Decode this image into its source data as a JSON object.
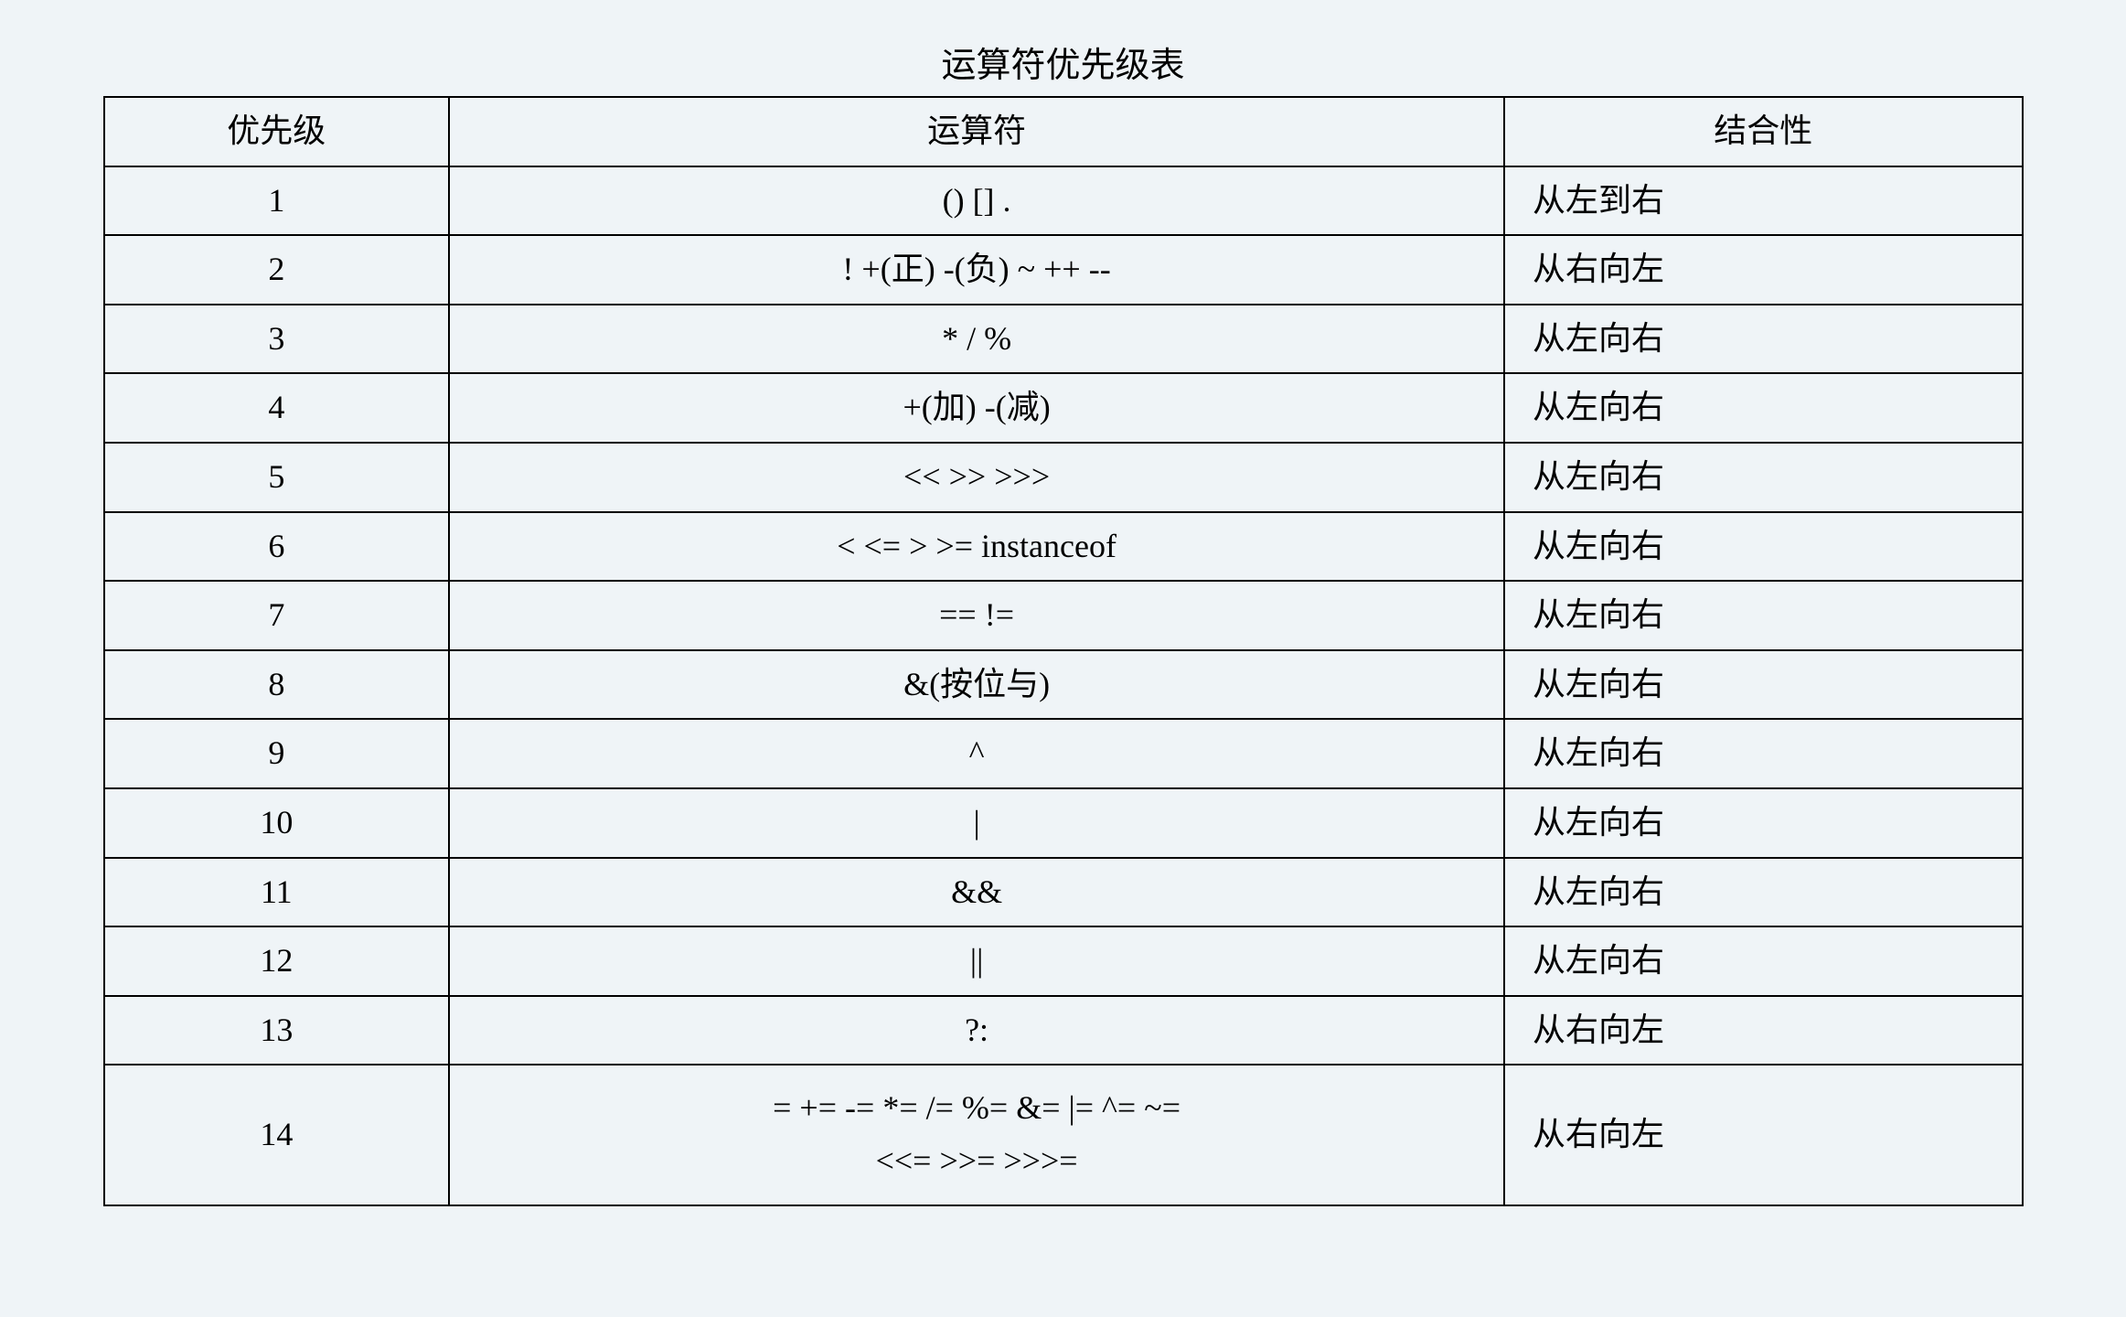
{
  "title": "运算符优先级表",
  "columns": [
    "优先级",
    "运算符",
    "结合性"
  ],
  "rows": [
    {
      "priority": "1",
      "operator": "() [] .",
      "assoc": "从左到右"
    },
    {
      "priority": "2",
      "operator": "! +(正)  -(负) ~ ++ --",
      "assoc": "从右向左"
    },
    {
      "priority": "3",
      "operator": "* / %",
      "assoc": "从左向右"
    },
    {
      "priority": "4",
      "operator": "+(加) -(减)",
      "assoc": "从左向右"
    },
    {
      "priority": "5",
      "operator": "<< >> >>>",
      "assoc": "从左向右"
    },
    {
      "priority": "6",
      "operator": "< <= > >= instanceof",
      "assoc": "从左向右"
    },
    {
      "priority": "7",
      "operator": "==   !=",
      "assoc": "从左向右"
    },
    {
      "priority": "8",
      "operator": "&(按位与)",
      "assoc": "从左向右"
    },
    {
      "priority": "9",
      "operator": "^",
      "assoc": "从左向右"
    },
    {
      "priority": "10",
      "operator": "|",
      "assoc": "从左向右"
    },
    {
      "priority": "11",
      "operator": "&&",
      "assoc": "从左向右"
    },
    {
      "priority": "12",
      "operator": "||",
      "assoc": "从左向右"
    },
    {
      "priority": "13",
      "operator": "?:",
      "assoc": "从右向左"
    },
    {
      "priority": "14",
      "operator": "= += -= *= /= %= &= |= ^=  ~=\n<<= >>=   >>>=",
      "assoc": "从右向左"
    }
  ],
  "style": {
    "background_color": "#eff4f7",
    "border_color": "#000000",
    "font_color": "#000000",
    "title_fontsize": 38,
    "cell_fontsize": 36,
    "column_widths_pct": [
      18,
      55,
      27
    ],
    "column_align": [
      "center",
      "center",
      "left"
    ]
  }
}
